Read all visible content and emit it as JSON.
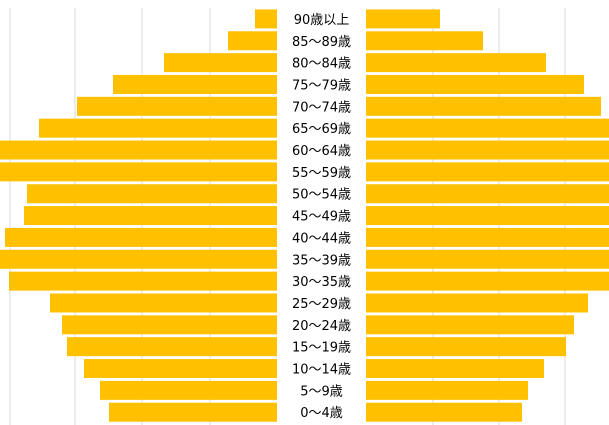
{
  "chart_data": {
    "type": "bar",
    "orientation": "horizontal",
    "layout": "population-pyramid",
    "categories": [
      "90歳以上",
      "85～89歳",
      "80～84歳",
      "75～79歳",
      "70～74歳",
      "65～69歳",
      "60～64歳",
      "55～59歳",
      "50～54歳",
      "45～49歳",
      "40～44歳",
      "35～39歳",
      "30～35歳",
      "25～29歳",
      "20～24歳",
      "15～19歳",
      "10～14歳",
      "5～9歳",
      "0～4歳"
    ],
    "series": [
      {
        "side": "left",
        "values": [
          22,
          49,
          113,
          164,
          200,
          238,
          318,
          286,
          250,
          253,
          272,
          306,
          268,
          227,
          215,
          210,
          193,
          177,
          168
        ]
      },
      {
        "side": "right",
        "values": [
          74,
          117,
          180,
          218,
          235,
          253,
          330,
          295,
          248,
          250,
          262,
          300,
          260,
          222,
          208,
          200,
          178,
          162,
          156
        ]
      }
    ],
    "grid": true,
    "legend": "none",
    "bar_color": "#FFC000",
    "grid_color": "#D9D9D9"
  }
}
